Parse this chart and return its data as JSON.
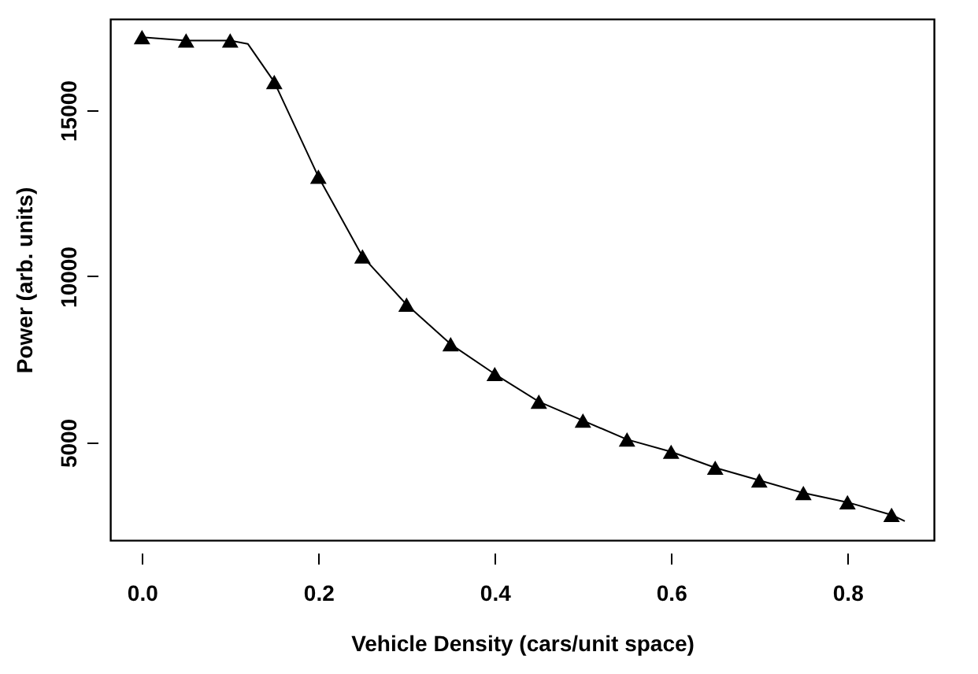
{
  "chart_data": {
    "type": "line",
    "xlabel": "Vehicle Density (cars/unit space)",
    "ylabel": "Power (arb. units)",
    "xlim": [
      -0.036,
      0.898
    ],
    "xticks": [
      {
        "value": 0,
        "label": "0.0"
      },
      0.2,
      0.4,
      0.6,
      0.8
    ],
    "ylim": [
      2060,
      17750
    ],
    "yticks": [
      5000,
      10000,
      15000
    ],
    "grid": false,
    "series": [
      {
        "color": "#000000",
        "marker": "none",
        "x": [
          0,
          0.05,
          0.1,
          0.12,
          0.15,
          0.2,
          0.25,
          0.3,
          0.35,
          0.4,
          0.45,
          0.5,
          0.55,
          0.6,
          0.65,
          0.7,
          0.75,
          0.8,
          0.85,
          0.865
        ],
        "values": [
          17200,
          17100,
          17100,
          17000,
          15850,
          13000,
          10600,
          9150,
          7960,
          7060,
          6230,
          5660,
          5090,
          4720,
          4240,
          3860,
          3480,
          3200,
          2820,
          2630
        ]
      },
      {
        "type": "scatter",
        "color": "#000000",
        "marker": "triangle",
        "x": [
          0,
          0.05,
          0.1,
          0.15,
          0.2,
          0.25,
          0.3,
          0.35,
          0.4,
          0.45,
          0.5,
          0.55,
          0.6,
          0.65,
          0.7,
          0.75,
          0.8,
          0.85
        ],
        "values": [
          17200,
          17100,
          17100,
          15850,
          13000,
          10600,
          9150,
          7960,
          7060,
          6230,
          5660,
          5090,
          4720,
          4240,
          3860,
          3480,
          3200,
          2820
        ]
      }
    ]
  }
}
